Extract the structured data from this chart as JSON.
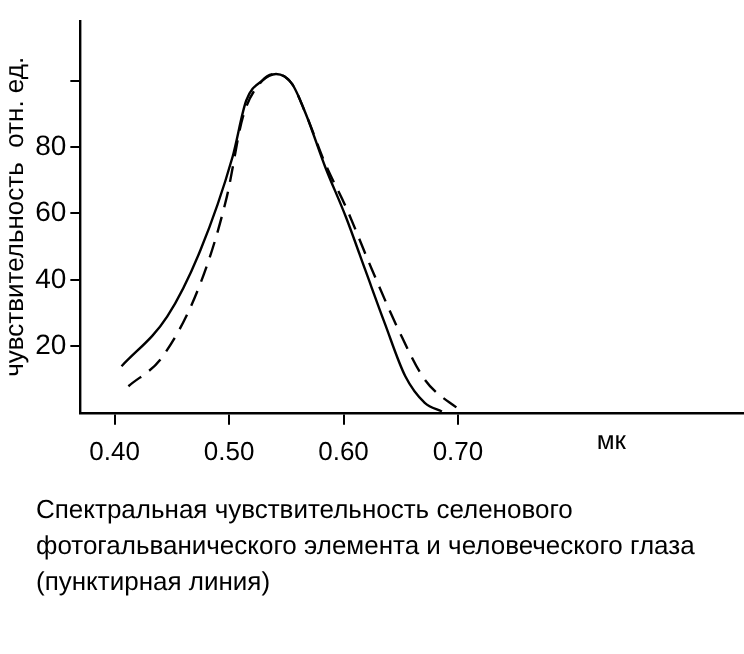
{
  "chart_data": {
    "type": "line",
    "xlabel": "мк",
    "ylabel": "чувствительность  отн. ед.",
    "xlim": [
      0.37,
      0.95
    ],
    "xticks": [
      {
        "value": 0.4,
        "label": "0.40"
      },
      {
        "value": 0.5,
        "label": "0.50"
      },
      {
        "value": 0.6,
        "label": "0.60"
      },
      {
        "value": 0.7,
        "label": "0.70"
      }
    ],
    "ylim": [
      0,
      118
    ],
    "yticks": [
      20,
      40,
      60,
      80,
      {
        "value": 100,
        "label": null
      }
    ],
    "grid": false,
    "legend": false,
    "marker": "none",
    "series": [
      {
        "color": "#000000",
        "line_style": "solid",
        "x": [
          0.406,
          0.446,
          0.475,
          0.503,
          0.515,
          0.529,
          0.541,
          0.555,
          0.567,
          0.584,
          0.602,
          0.619,
          0.636,
          0.654,
          0.671,
          0.686
        ],
        "values": [
          14,
          29,
          49,
          77,
          94,
          100,
          102,
          99,
          90,
          74,
          59,
          43,
          27,
          11,
          3,
          0.4
        ]
      },
      {
        "color": "#000000",
        "line_style": "dashed",
        "x": [
          0.412,
          0.442,
          0.475,
          0.498,
          0.512,
          0.529,
          0.541,
          0.555,
          0.567,
          0.584,
          0.602,
          0.625,
          0.648,
          0.671,
          0.703
        ],
        "values": [
          8,
          17,
          39,
          65,
          89,
          100,
          102,
          99,
          90,
          75,
          62,
          43,
          25,
          10,
          0.4
        ]
      }
    ],
    "annotations": [
      "Спектральная чувствительность селенового фотогальванического элемента и человеческого глаза (пунктирная линия)"
    ]
  }
}
